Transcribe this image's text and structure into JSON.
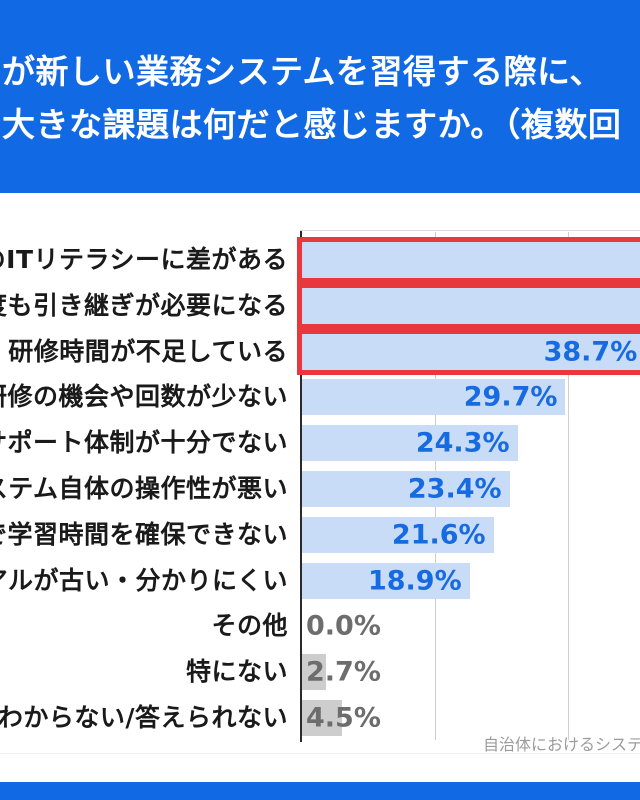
{
  "header": {
    "title_line1": "が新しい業務システムを習得する際に、",
    "title_line2": "大きな課題は何だと感じますか。（複数回"
  },
  "chart_data": {
    "type": "bar",
    "orientation": "horizontal",
    "unit": "%",
    "categories": [
      "のITリテラシーに差がある",
      "度も引き継ぎが必要になる",
      "・研修時間が不足している",
      "研修の機会や回数が少ない",
      "サポート体制が十分でない",
      "ステム自体の操作性が悪い",
      "で学習時間を確保できない",
      "アルが古い・分かりにくい",
      "その他",
      "特にない",
      "わからない/答えられない"
    ],
    "values": [
      null,
      null,
      38.7,
      29.7,
      24.3,
      23.4,
      21.6,
      18.9,
      0.0,
      2.7,
      4.5
    ],
    "x_gridlines_pct": [
      15,
      30
    ],
    "xlim_visible_pct": [
      0,
      38
    ],
    "legend": "none",
    "rows": [
      {
        "label": "のITリテラシーに差がある",
        "value": null,
        "value_label": "",
        "highlighted": true,
        "cut_off": true,
        "style": "blue"
      },
      {
        "label": "度も引き継ぎが必要になる",
        "value": null,
        "value_label": "",
        "highlighted": true,
        "cut_off": true,
        "style": "blue"
      },
      {
        "label": "・研修時間が不足している",
        "value": 38.7,
        "value_label": "38.7%",
        "highlighted": true,
        "cut_off": true,
        "style": "blue"
      },
      {
        "label": "研修の機会や回数が少ない",
        "value": 29.7,
        "value_label": "29.7%",
        "highlighted": false,
        "cut_off": false,
        "style": "blue"
      },
      {
        "label": "サポート体制が十分でない",
        "value": 24.3,
        "value_label": "24.3%",
        "highlighted": false,
        "cut_off": false,
        "style": "blue"
      },
      {
        "label": "ステム自体の操作性が悪い",
        "value": 23.4,
        "value_label": "23.4%",
        "highlighted": false,
        "cut_off": false,
        "style": "blue"
      },
      {
        "label": "で学習時間を確保できない",
        "value": 21.6,
        "value_label": "21.6%",
        "highlighted": false,
        "cut_off": false,
        "style": "blue"
      },
      {
        "label": "アルが古い・分かりにくい",
        "value": 18.9,
        "value_label": "18.9%",
        "highlighted": false,
        "cut_off": false,
        "style": "blue"
      },
      {
        "label": "その他",
        "value": 0.0,
        "value_label": "0.0%",
        "highlighted": false,
        "cut_off": false,
        "style": "gray"
      },
      {
        "label": "特にない",
        "value": 2.7,
        "value_label": "2.7%",
        "highlighted": false,
        "cut_off": false,
        "style": "gray"
      },
      {
        "label": "わからない/答えられない",
        "value": 4.5,
        "value_label": "4.5%",
        "highlighted": false,
        "cut_off": false,
        "style": "gray"
      }
    ]
  },
  "footnote": {
    "source_text": "自治体におけるシステム"
  },
  "colors": {
    "blue": "#1169e3",
    "title_text": "#ffffff",
    "bar_blue": "#c8dcf8",
    "bar_gray": "#cdcdcd",
    "value_blue": "#176be0",
    "value_gray": "#6d6d6d",
    "highlight_red": "#e8383d",
    "label_text": "#1a1a1a",
    "caption_gray": "#9b9b9b",
    "gridline": "#cfcfcf",
    "axis": "#2a2a2a"
  }
}
